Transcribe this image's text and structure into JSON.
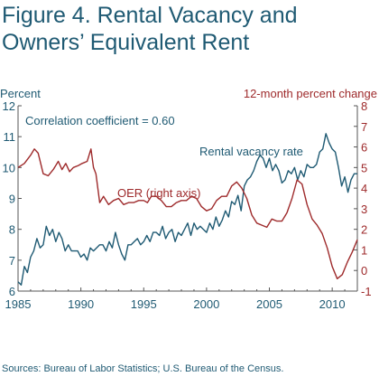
{
  "figure": {
    "title_line1": "Figure 4. Rental Vacancy and",
    "title_line2": "Owners’ Equivalent Rent",
    "source": "Sources: Bureau of Labor Statistics; U.S. Bureau of the Census."
  },
  "colors": {
    "vacancy": "#1f5a73",
    "oer": "#9e2a2b",
    "axis": "#555555"
  },
  "chart_data": {
    "type": "line",
    "title": "Figure 4. Rental Vacancy and Owners’ Equivalent Rent",
    "ylabel_left": "Percent",
    "ylabel_right": "12-month percent change",
    "xlim": [
      1985,
      2012
    ],
    "ylim_left": [
      6,
      12
    ],
    "ylim_right": [
      -1,
      8
    ],
    "x_ticks": [
      1985,
      1990,
      1995,
      2000,
      2005,
      2010
    ],
    "y_ticks_left": [
      6,
      7,
      8,
      9,
      10,
      11,
      12
    ],
    "y_ticks_right": [
      -1,
      0,
      1,
      2,
      3,
      4,
      5,
      6,
      7,
      8
    ],
    "grid": false,
    "annotations": [
      {
        "text": "Correlation coefficient = 0.60"
      },
      {
        "text": "Rental vacancy rate"
      },
      {
        "text": "OER (right axis)"
      }
    ],
    "series": [
      {
        "name": "Rental vacancy rate",
        "axis": "left",
        "x": [
          1985,
          1985.25,
          1985.5,
          1985.75,
          1986,
          1986.25,
          1986.5,
          1986.75,
          1987,
          1987.25,
          1987.5,
          1987.75,
          1988,
          1988.25,
          1988.5,
          1988.75,
          1989,
          1989.25,
          1989.5,
          1989.75,
          1990,
          1990.25,
          1990.5,
          1990.75,
          1991,
          1991.25,
          1991.5,
          1991.75,
          1992,
          1992.25,
          1992.5,
          1992.75,
          1993,
          1993.25,
          1993.5,
          1993.75,
          1994,
          1994.25,
          1994.5,
          1994.75,
          1995,
          1995.25,
          1995.5,
          1995.75,
          1996,
          1996.25,
          1996.5,
          1996.75,
          1997,
          1997.25,
          1997.5,
          1997.75,
          1998,
          1998.25,
          1998.5,
          1998.75,
          1999,
          1999.25,
          1999.5,
          1999.75,
          2000,
          2000.25,
          2000.5,
          2000.75,
          2001,
          2001.25,
          2001.5,
          2001.75,
          2002,
          2002.25,
          2002.5,
          2002.75,
          2003,
          2003.25,
          2003.5,
          2003.75,
          2004,
          2004.25,
          2004.5,
          2004.75,
          2005,
          2005.25,
          2005.5,
          2005.75,
          2006,
          2006.25,
          2006.5,
          2006.75,
          2007,
          2007.25,
          2007.5,
          2007.75,
          2008,
          2008.25,
          2008.5,
          2008.75,
          2009,
          2009.25,
          2009.5,
          2009.75,
          2010,
          2010.25,
          2010.5,
          2010.75,
          2011,
          2011.25,
          2011.5,
          2011.75,
          2012
        ],
        "values": [
          6.3,
          6.2,
          6.8,
          6.6,
          7.1,
          7.3,
          7.7,
          7.4,
          7.5,
          8.1,
          7.8,
          8.0,
          7.6,
          7.9,
          7.7,
          7.3,
          7.5,
          7.3,
          7.3,
          7.3,
          7.1,
          7.2,
          7.0,
          7.4,
          7.3,
          7.4,
          7.5,
          7.5,
          7.3,
          7.6,
          7.4,
          7.9,
          7.5,
          7.2,
          7.0,
          7.5,
          7.5,
          7.6,
          7.7,
          7.5,
          7.6,
          7.8,
          7.6,
          7.9,
          7.9,
          7.8,
          8.1,
          7.7,
          7.9,
          8.0,
          7.6,
          7.9,
          7.8,
          8.0,
          8.2,
          7.8,
          8.2,
          8.0,
          8.1,
          8.0,
          7.9,
          8.2,
          8.0,
          8.4,
          8.1,
          8.3,
          8.6,
          8.4,
          8.9,
          8.8,
          9.1,
          8.6,
          9.4,
          9.6,
          9.7,
          9.9,
          10.2,
          10.4,
          10.3,
          10.0,
          10.3,
          9.9,
          10.1,
          9.9,
          9.5,
          9.6,
          9.9,
          9.8,
          10.0,
          9.6,
          9.9,
          9.7,
          10.1,
          10.0,
          10.0,
          10.1,
          10.5,
          10.6,
          11.1,
          10.8,
          10.6,
          10.5,
          10.0,
          9.4,
          9.7,
          9.2,
          9.6,
          9.8,
          9.8
        ]
      },
      {
        "name": "OER (right axis)",
        "axis": "right",
        "x": [
          1985,
          1985.5,
          1986,
          1986.3,
          1986.6,
          1987,
          1987.4,
          1987.8,
          1988.2,
          1988.5,
          1988.8,
          1989.1,
          1989.4,
          1989.8,
          1990.1,
          1990.5,
          1990.8,
          1991.0,
          1991.2,
          1991.5,
          1991.8,
          1992.2,
          1992.6,
          1993.0,
          1993.4,
          1993.8,
          1994.2,
          1994.6,
          1995.0,
          1995.3,
          1995.6,
          1996.0,
          1996.4,
          1996.8,
          1997.2,
          1997.6,
          1998.0,
          1998.4,
          1998.8,
          1999.2,
          1999.6,
          2000.0,
          2000.4,
          2000.8,
          2001.2,
          2001.6,
          2002.0,
          2002.4,
          2002.8,
          2003.2,
          2003.6,
          2004.0,
          2004.4,
          2004.8,
          2005.2,
          2005.6,
          2006.0,
          2006.4,
          2006.8,
          2007.2,
          2007.6,
          2008.0,
          2008.4,
          2008.8,
          2009.2,
          2009.6,
          2010.0,
          2010.4,
          2010.8,
          2011.2,
          2011.6,
          2012.0
        ],
        "values": [
          5.0,
          5.2,
          5.6,
          5.9,
          5.7,
          4.7,
          4.6,
          4.9,
          5.3,
          4.9,
          5.2,
          4.8,
          5.0,
          5.1,
          5.2,
          5.3,
          5.9,
          5.0,
          4.7,
          3.3,
          3.6,
          3.2,
          3.4,
          3.5,
          3.2,
          3.3,
          3.3,
          3.4,
          3.4,
          3.3,
          3.6,
          3.6,
          3.4,
          3.1,
          3.1,
          3.3,
          3.4,
          3.4,
          3.6,
          3.5,
          3.1,
          2.9,
          3.0,
          3.4,
          3.6,
          3.6,
          4.1,
          4.3,
          4.0,
          3.5,
          2.7,
          2.3,
          2.2,
          2.1,
          2.5,
          2.4,
          2.4,
          2.8,
          3.5,
          4.4,
          4.2,
          3.2,
          2.5,
          2.2,
          1.8,
          1.1,
          0.2,
          -0.4,
          -0.2,
          0.4,
          0.9,
          1.5
        ]
      }
    ]
  }
}
